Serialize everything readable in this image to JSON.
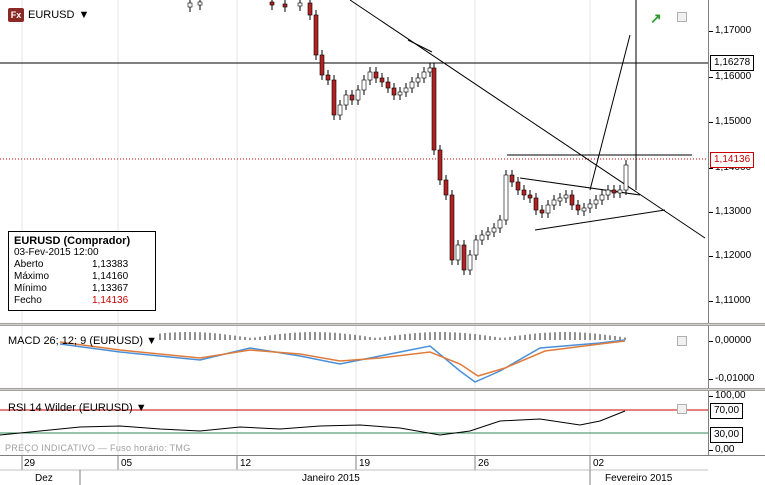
{
  "symbol": {
    "name": "EURUSD",
    "badge": "Fx"
  },
  "price_tags": {
    "hline": "1,16278",
    "last": "1,14136"
  },
  "price_axis": [
    "1,17000",
    "1,16000",
    "1,15000",
    "1,14000",
    "1,13000",
    "1,12000",
    "1,11000"
  ],
  "info": {
    "title": "EURUSD (Comprador)",
    "datetime": "03-Fev-2015 12:00",
    "rows": [
      {
        "label": "Aberto",
        "value": "1,13383"
      },
      {
        "label": "Máximo",
        "value": "1,14160"
      },
      {
        "label": "Mínimo",
        "value": "1,13367"
      },
      {
        "label": "Fecho",
        "value": "1,14136"
      }
    ]
  },
  "macd": {
    "label": "MACD 26; 12; 9 (EURUSD)",
    "axis": [
      "0,00000",
      "-0,01000"
    ]
  },
  "rsi": {
    "label": "RSI 14 Wilder (EURUSD)",
    "axis_top": "100,00",
    "tag70": "70,00",
    "tag30": "30,00",
    "axis_bottom": "0,00"
  },
  "footer_note": "PREÇO INDICATIVO — Fuso horário: TMG",
  "time_axis": {
    "days": [
      "29",
      "05",
      "12",
      "19",
      "26",
      "02"
    ],
    "months": [
      "Dez",
      "Janeiro 2015",
      "Fevereiro 2015"
    ]
  },
  "colors": {
    "up": "#ffffff",
    "down": "#b22222",
    "rsi_high": "#cc0000",
    "rsi_low": "#2e8b57",
    "macd": "#4a90d9",
    "signal": "#e07b39"
  }
}
